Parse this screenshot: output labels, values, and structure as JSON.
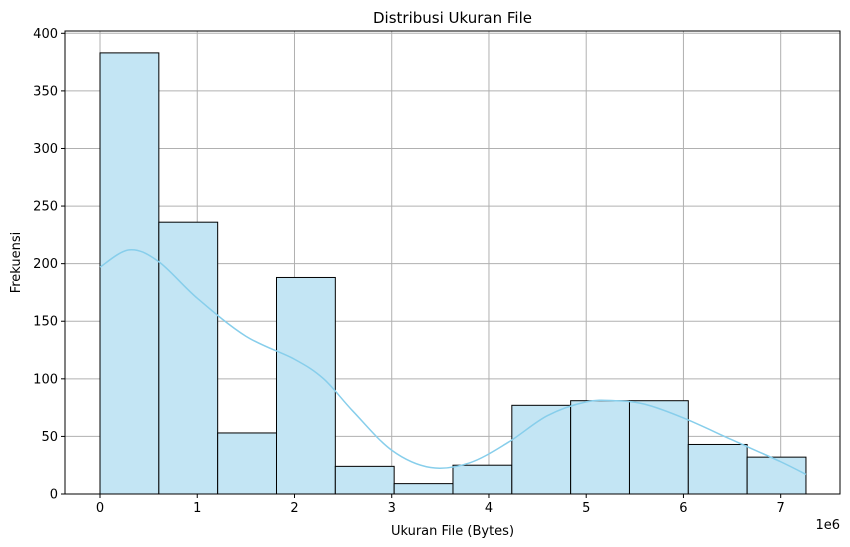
{
  "chart_data": {
    "type": "bar",
    "subtype": "histogram",
    "title": "Distribusi Ukuran File",
    "xlabel": "Ukuran File (Bytes)",
    "ylabel": "Frekuensi",
    "x_offset_text": "1e6",
    "xlim": [
      -0.36,
      7.61
    ],
    "ylim": [
      0,
      402
    ],
    "xticks": [
      0,
      1,
      2,
      3,
      4,
      5,
      6,
      7
    ],
    "yticks": [
      0,
      50,
      100,
      150,
      200,
      250,
      300,
      350,
      400
    ],
    "grid": true,
    "bin_edges": [
      0,
      0.605,
      1.21,
      1.815,
      2.42,
      3.025,
      3.63,
      4.235,
      4.84,
      5.445,
      6.05,
      6.655,
      7.26
    ],
    "values": [
      383,
      236,
      53,
      188,
      24,
      9,
      25,
      77,
      81,
      81,
      43,
      32
    ],
    "bar_fill": "#c3e5f4",
    "bar_edge": "#000000",
    "kde": {
      "color": "#87ceeb",
      "x": [
        0,
        0.3,
        0.6,
        1.0,
        1.5,
        2.0,
        2.3,
        2.6,
        3.0,
        3.4,
        3.8,
        4.2,
        4.6,
        5.0,
        5.3,
        5.6,
        6.0,
        6.5,
        7.0,
        7.26
      ],
      "y": [
        197,
        212,
        202,
        170,
        137,
        117,
        100,
        72,
        38,
        23,
        27,
        45,
        68,
        80,
        81,
        78,
        66,
        47,
        28,
        17
      ]
    }
  }
}
